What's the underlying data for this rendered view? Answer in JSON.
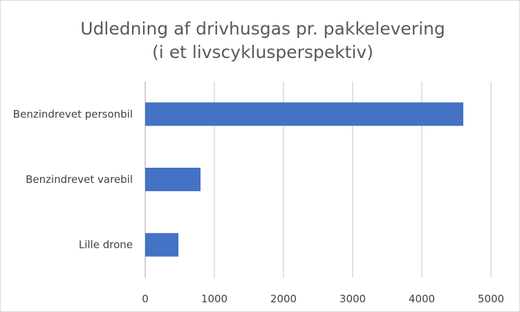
{
  "chart_data": {
    "type": "bar",
    "orientation": "horizontal",
    "title_lines": [
      "Udledning af drivhusgas pr. pakkelevering",
      "(i et livscyklusperspektiv)"
    ],
    "categories": [
      "Benzindrevet personbil",
      "Benzindrevet varebil",
      "Lille drone"
    ],
    "values": [
      4600,
      800,
      480
    ],
    "xlim": [
      0,
      5000
    ],
    "xticks": [
      0,
      1000,
      2000,
      3000,
      4000,
      5000
    ],
    "xlabel": "",
    "ylabel": "",
    "grid": "vertical",
    "legend": "none",
    "bar_color": "#4472C4"
  }
}
